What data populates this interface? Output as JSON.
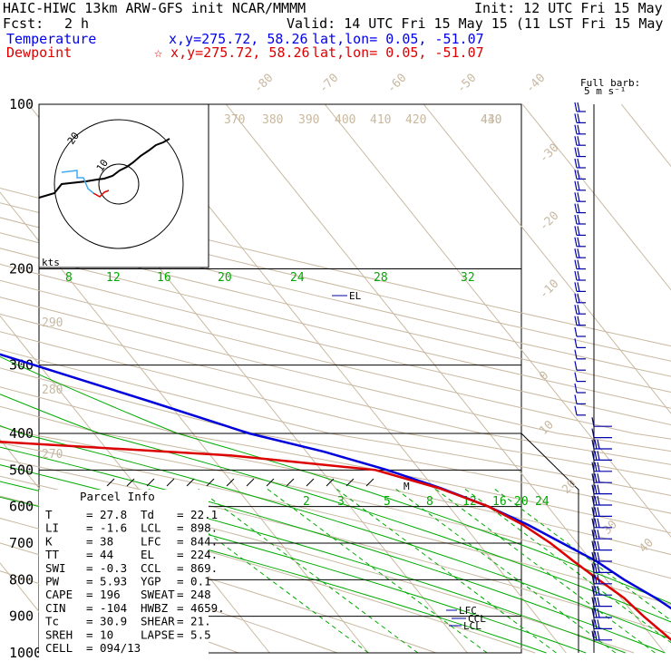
{
  "header": {
    "title": "HAIC-HIWC 13km ARW-GFS init   NCAR/MMMM",
    "init": "Init: 12 UTC Fri 15 May 15",
    "fcst_label": "Fcst:",
    "fcst_value": "2 h",
    "valid": "Valid: 14 UTC Fri 15 May 15 (11 LST Fri 15 May 15)",
    "temp_label": "Temperature",
    "temp_xy": "x,y=275.72, 58.26",
    "temp_latlon": "lat,lon=  0.05, -51.07",
    "dew_label": "Dewpoint",
    "dew_xy": "☆ x,y=275.72, 58.26",
    "dew_latlon": "lat,lon=  0.05, -51.07",
    "barb_label_1": "Full barb:",
    "barb_label_2": "5 m s⁻¹"
  },
  "hodograph": {
    "kts_label": "kts",
    "ring_10": "10",
    "ring_20": "20"
  },
  "chart_data": {
    "type": "line",
    "title": "",
    "ylabel": "",
    "pressure_ticks": [
      "100",
      "200",
      "300",
      "400",
      "500",
      "600",
      "700",
      "800",
      "900",
      "1000"
    ],
    "temp_ticks": [
      "8",
      "12",
      "16",
      "20",
      "24",
      "28",
      "32"
    ],
    "skewed_temp_labels": [
      "-80",
      "-70",
      "-60",
      "-50",
      "-40",
      "-30",
      "-20",
      "-10",
      "0",
      "10",
      "20",
      "30",
      "40"
    ],
    "theta_labels": [
      "370",
      "380",
      "390",
      "400",
      "410",
      "420",
      "430",
      "440"
    ],
    "theta_labels_left": [
      "290",
      "280",
      "270"
    ],
    "mixing_ratio_labels": [
      "2",
      "3",
      "5",
      "8",
      "12",
      "16",
      "20",
      "24"
    ],
    "level_labels": {
      "EL": "EL",
      "LFC": "LFC",
      "CCL": "CCL",
      "LCL": "LCL",
      "M": "M"
    },
    "series": [
      {
        "name": "Temperature",
        "color": "#0000dd",
        "pressure_hpa": [
          100,
          130,
          160,
          200,
          250,
          300,
          350,
          400,
          450,
          500,
          550,
          600,
          650,
          700,
          750,
          800,
          850,
          900,
          950,
          1000
        ],
        "temp_c": [
          -76,
          -66,
          -56,
          -44,
          -31,
          -20.5,
          -11.7,
          -4.3,
          1.8,
          6.7,
          10.7,
          14,
          16.5,
          18.5,
          20.5,
          21.8,
          23.5,
          24.8,
          26.3,
          27.8
        ]
      },
      {
        "name": "Dewpoint",
        "color": "#dd0000",
        "pressure_hpa": [
          100,
          130,
          170,
          210,
          250,
          280,
          300,
          330,
          350,
          380,
          420,
          460,
          500,
          550,
          600,
          650,
          700,
          750,
          800,
          850,
          900,
          950,
          1000
        ],
        "dewpt_c": [
          -82,
          -80,
          -79,
          -73,
          -67,
          -64,
          -64,
          -66,
          -68,
          -61,
          -32,
          -8,
          5.5,
          10.5,
          14,
          16,
          17.3,
          18.2,
          19.2,
          20.3,
          20.8,
          21.5,
          22.1
        ]
      }
    ]
  },
  "parcel_info": {
    "heading": "Parcel Info",
    "rows": [
      {
        "l1": "T",
        "v1": "27.8",
        "l2": "Td",
        "v2": "22.1"
      },
      {
        "l1": "LI",
        "v1": "-1.6",
        "l2": "LCL",
        "v2": "898."
      },
      {
        "l1": "K",
        "v1": "38",
        "l2": "LFC",
        "v2": "844."
      },
      {
        "l1": "TT",
        "v1": "44",
        "l2": "EL",
        "v2": "224."
      },
      {
        "l1": "SWI",
        "v1": "-0.3",
        "l2": "CCL",
        "v2": "869."
      },
      {
        "l1": "PW",
        "v1": "5.93",
        "l2": "YGP",
        "v2": "0.1"
      },
      {
        "l1": "CAPE",
        "v1": "196",
        "l2": "SWEAT",
        "v2": "248"
      },
      {
        "l1": "CIN",
        "v1": "-104",
        "l2": "HWBZ",
        "v2": "4659."
      },
      {
        "l1": "Tc",
        "v1": "30.9",
        "l2": "SHEAR",
        "v2": "21."
      },
      {
        "l1": "SREH",
        "v1": "10",
        "l2": "LAPSE",
        "v2": "5.5"
      },
      {
        "l1": "CELL",
        "v1": "094/13",
        "l2": "",
        "v2": ""
      }
    ]
  },
  "colors": {
    "grid": "#c8b8a0",
    "dry": "#c8b8a0",
    "moist": "#00aa00",
    "mixing": "#00aa00",
    "temp": "#0000dd",
    "dew": "#dd0000",
    "barb": "#0000aa"
  }
}
